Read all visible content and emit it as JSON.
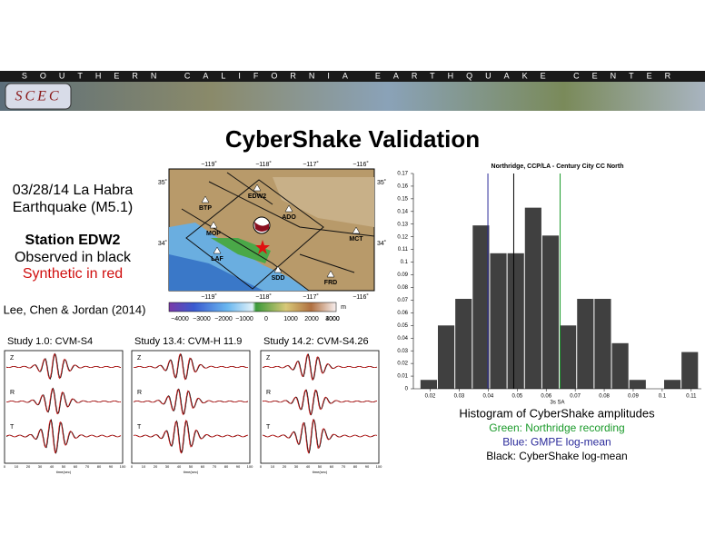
{
  "header": {
    "banner": "SOUTHERN CALIFORNIA EARTHQUAKE CENTER",
    "logo": "SCEC"
  },
  "title": "CyberShake Validation",
  "left_panel": {
    "event_lines": [
      "03/28/14 La Habra",
      "Earthquake (M5.1)"
    ],
    "station": "Station EDW2",
    "observed": "Observed in black",
    "synthetic": "Synthetic in red",
    "citation": "Lee, Chen & Jordan (2014)"
  },
  "map": {
    "lon_labels": [
      "−119˚",
      "−118˚",
      "−117˚",
      "−116˚"
    ],
    "lat_labels": [
      "35˚",
      "34˚"
    ],
    "stations": [
      "BTP",
      "EDW2",
      "ADO",
      "MOP",
      "MCT",
      "LAF",
      "SDD",
      "FRD"
    ],
    "colorbar_labels": [
      "−4000",
      "−3000",
      "−2000",
      "−1000",
      "0",
      "1000",
      "2000",
      "3000",
      "4000"
    ],
    "colorbar_unit": "m"
  },
  "seismograms": {
    "panels": [
      "Study 1.0: CVM-S4",
      "Study 13.4: CVM-H 11.9",
      "Study 14.2: CVM-S4.26"
    ],
    "components": [
      "Z",
      "R",
      "T"
    ],
    "time_ticks": [
      0,
      10,
      20,
      30,
      40,
      50,
      60,
      70,
      80,
      90,
      100
    ],
    "xlabel": "time(sec)"
  },
  "chart_data": {
    "type": "histogram",
    "title": "Northridge, CCP/LA - Century City CC North",
    "xlabel": "3s SA",
    "bins": [
      0.0165,
      0.0225,
      0.0285,
      0.0345,
      0.0405,
      0.0465,
      0.0525,
      0.0585,
      0.0645,
      0.0705,
      0.0765,
      0.0825,
      0.0885,
      0.0945,
      0.1005,
      0.1065,
      0.1125
    ],
    "values": [
      0.007,
      0.05,
      0.071,
      0.129,
      0.107,
      0.107,
      0.143,
      0.121,
      0.05,
      0.071,
      0.071,
      0.036,
      0.007,
      0,
      0.007,
      0.029
    ],
    "color": "#404040",
    "xlim": [
      0.0142,
      0.1135
    ],
    "ylim": [
      0,
      0.17
    ],
    "xticks": [
      0.02,
      0.03,
      0.04,
      0.05,
      0.06,
      0.07,
      0.08,
      0.09,
      0.1,
      0.11
    ],
    "yticks": [
      0,
      0.01,
      0.02,
      0.03,
      0.04,
      0.05,
      0.06,
      0.07,
      0.08,
      0.09,
      0.1,
      0.11,
      0.12,
      0.13,
      0.14,
      0.15,
      0.16,
      0.17
    ],
    "caption": "Histogram of CyberShake amplitudes",
    "reference_lines": [
      {
        "value": 0.0648,
        "color": "#1a9a2a",
        "label": "Green: Northridge recording"
      },
      {
        "value": 0.0399,
        "color": "#2a2a9a",
        "label": "Blue: GMPE log-mean"
      },
      {
        "value": 0.0488,
        "color": "#000000",
        "label": "Black: CyberShake log-mean"
      }
    ]
  }
}
